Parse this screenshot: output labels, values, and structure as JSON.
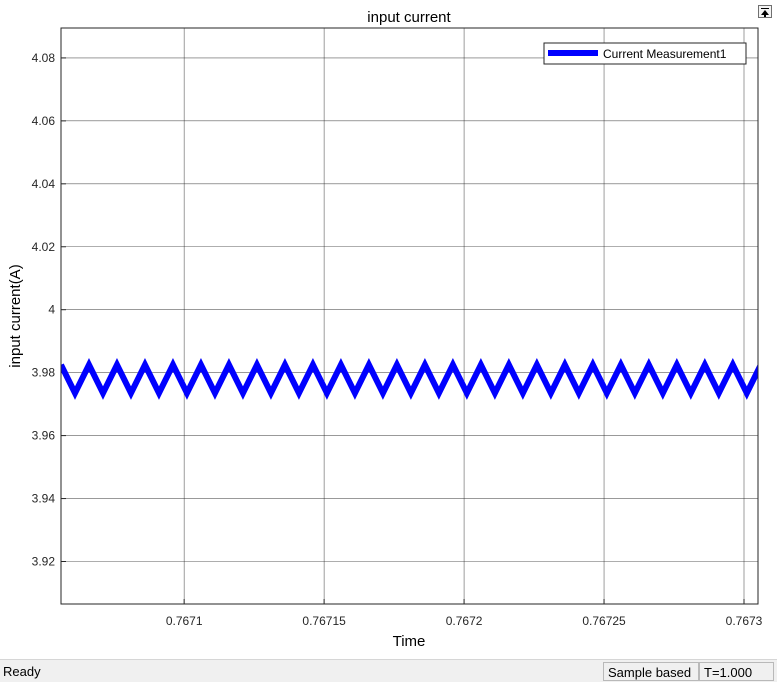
{
  "window": {
    "undock_button": "undock-icon"
  },
  "status_bar": {
    "status": "Ready",
    "sample_mode": "Sample based",
    "time": "T=1.000"
  },
  "chart_data": {
    "type": "line",
    "title": "input current",
    "xlabel": "Time",
    "ylabel": "input current(A)",
    "xlim": [
      0.767056,
      0.767305
    ],
    "ylim": [
      3.9065,
      4.0895
    ],
    "xticks": [
      0.7671,
      0.76715,
      0.7672,
      0.76725,
      0.7673
    ],
    "xtick_labels": [
      "0.7671",
      "0.76715",
      "0.7672",
      "0.76725",
      "0.7673"
    ],
    "yticks": [
      3.92,
      3.94,
      3.96,
      3.98,
      4.0,
      4.02,
      4.04,
      4.06,
      4.08
    ],
    "ytick_labels": [
      "3.92",
      "3.94",
      "3.96",
      "3.98",
      "4",
      "4.02",
      "4.04",
      "4.06",
      "4.08"
    ],
    "grid": true,
    "legend_position": "top-right",
    "series": [
      {
        "name": "Current Measurement1",
        "color": "#0000ff",
        "waveform": "triangle",
        "period": 1e-05,
        "min": 3.9735,
        "max": 3.9825,
        "first_peak_x": 0.767056
      }
    ]
  }
}
